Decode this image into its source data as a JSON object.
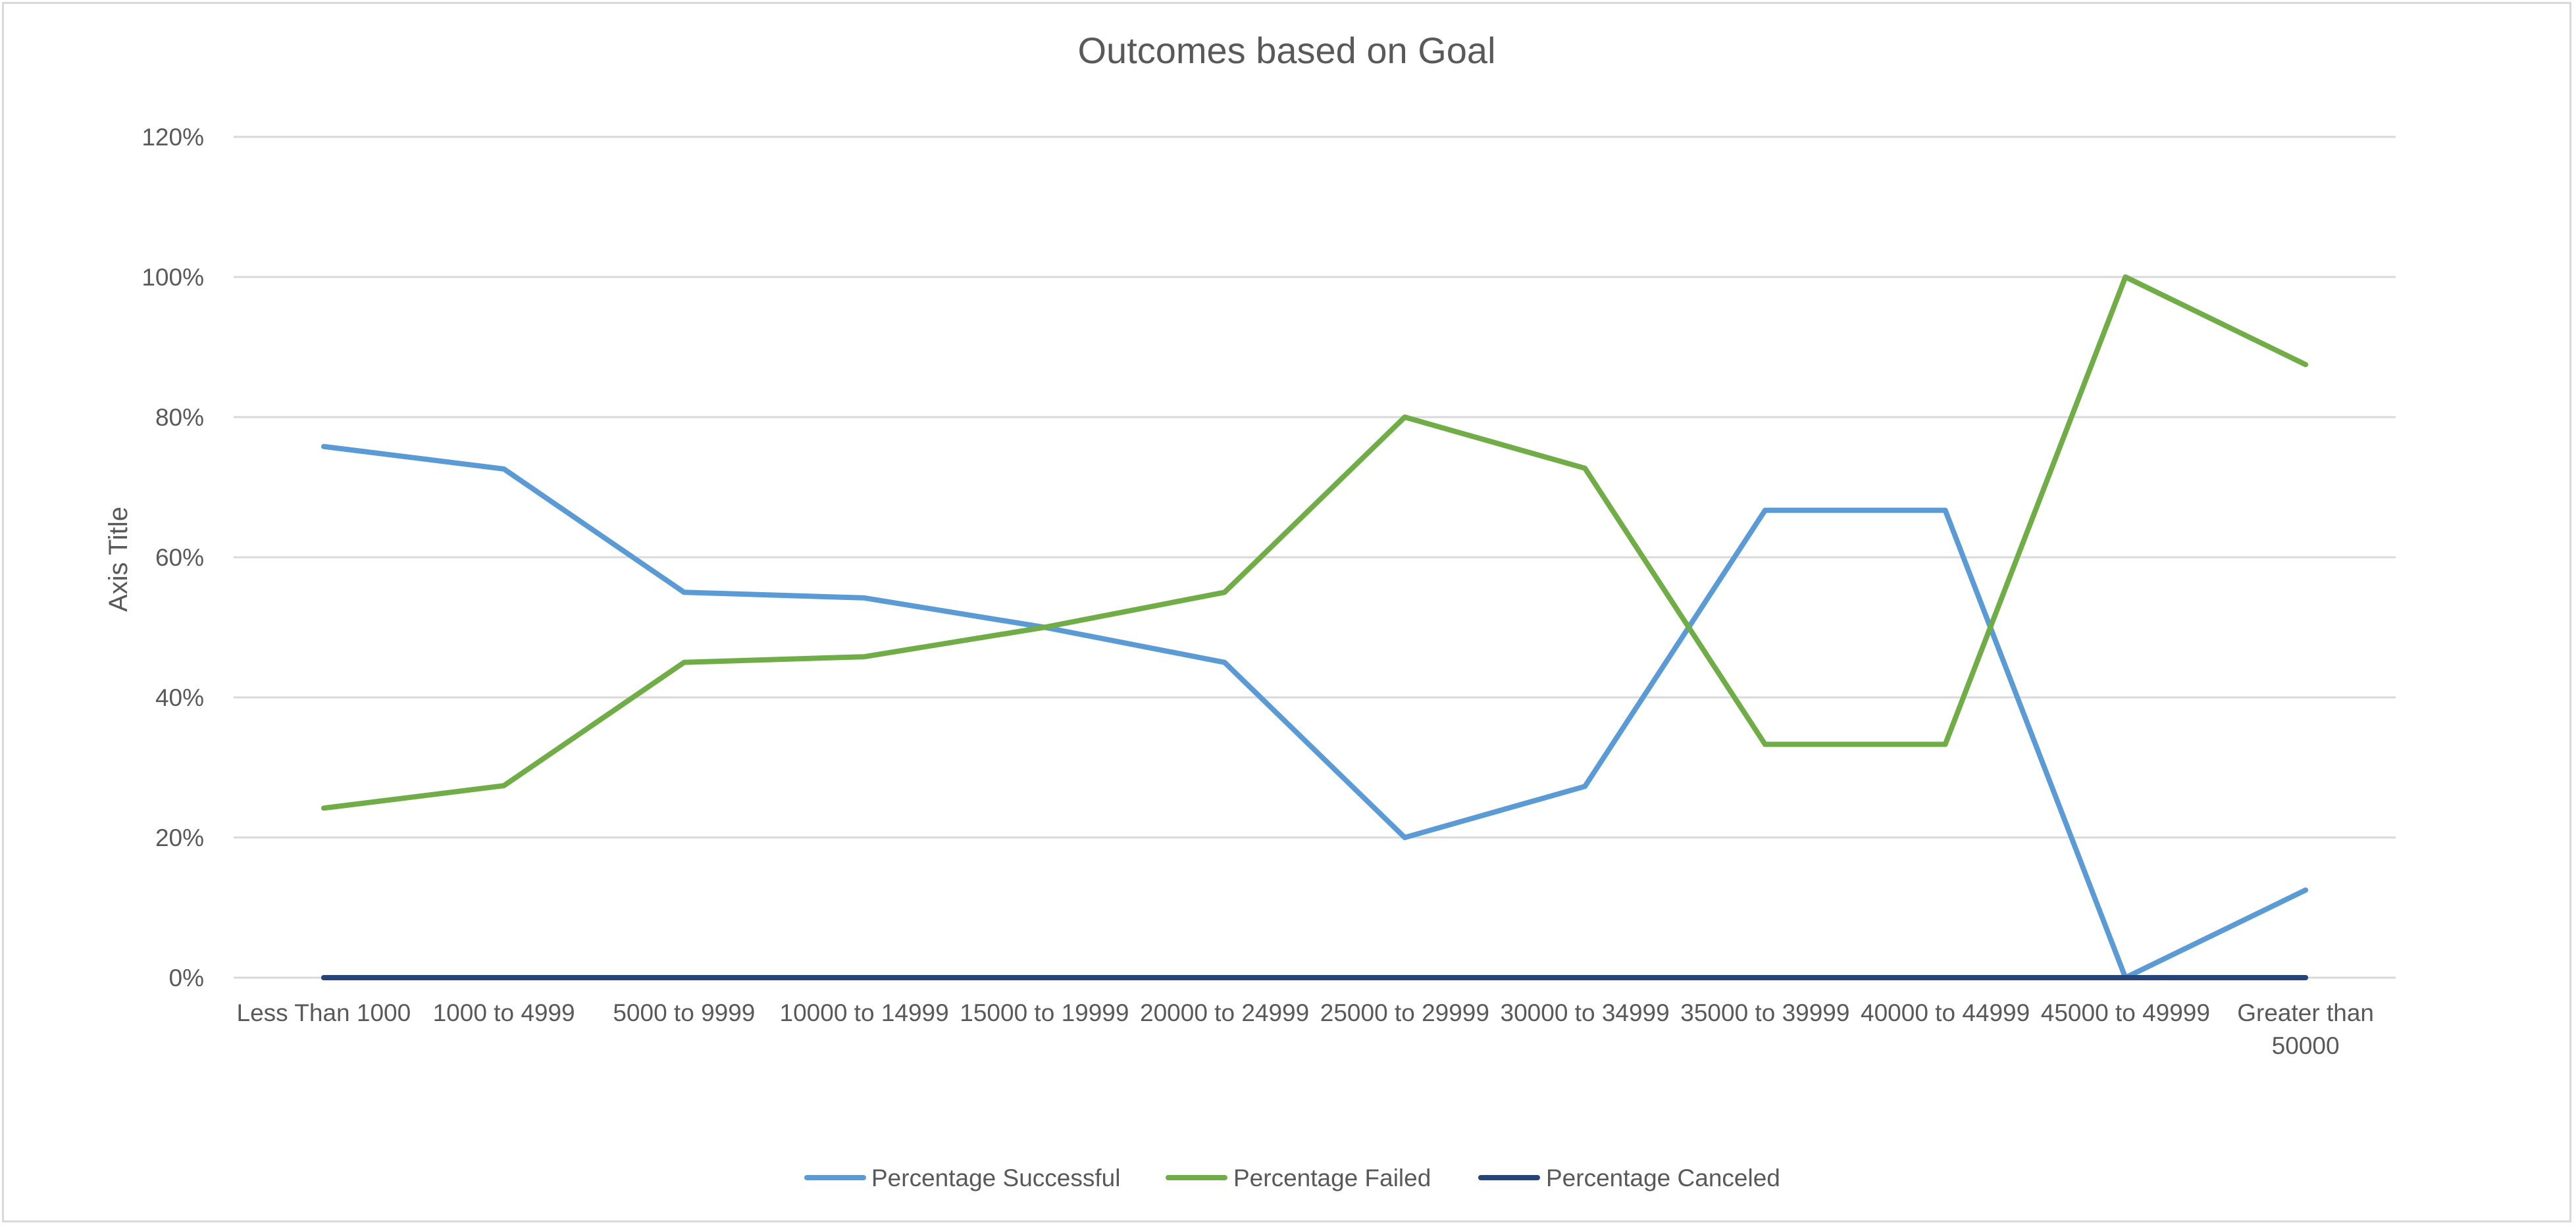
{
  "chart_data": {
    "type": "line",
    "title": "Outcomes based on Goal",
    "xlabel": "",
    "ylabel": "Axis Title",
    "ylim": [
      0,
      120
    ],
    "ytick_step": 20,
    "yticks": [
      "0%",
      "20%",
      "40%",
      "60%",
      "80%",
      "100%",
      "120%"
    ],
    "grid": true,
    "legend": "bottom",
    "categories": [
      [
        "Less Than 1000"
      ],
      [
        "1000 to 4999"
      ],
      [
        "5000 to 9999"
      ],
      [
        "10000 to 14999"
      ],
      [
        "15000 to 19999"
      ],
      [
        "20000 to 24999"
      ],
      [
        "25000 to 29999"
      ],
      [
        "30000 to 34999"
      ],
      [
        "35000 to 39999"
      ],
      [
        "40000 to 44999"
      ],
      [
        "45000 to 49999"
      ],
      [
        "Greater than",
        "50000"
      ]
    ],
    "series": [
      {
        "name": "Percentage Successful",
        "color": "#5b9bd5",
        "values": [
          75.8,
          72.6,
          55.0,
          54.2,
          50.0,
          45.0,
          20.0,
          27.3,
          66.7,
          66.7,
          0.0,
          12.5
        ]
      },
      {
        "name": "Percentage Failed",
        "color": "#70ad47",
        "values": [
          24.2,
          27.4,
          45.0,
          45.8,
          50.0,
          55.0,
          80.0,
          72.7,
          33.3,
          33.3,
          100.0,
          87.5
        ]
      },
      {
        "name": "Percentage Canceled",
        "color": "#264478",
        "values": [
          0,
          0,
          0,
          0,
          0,
          0,
          0,
          0,
          0,
          0,
          0,
          0
        ]
      }
    ]
  }
}
